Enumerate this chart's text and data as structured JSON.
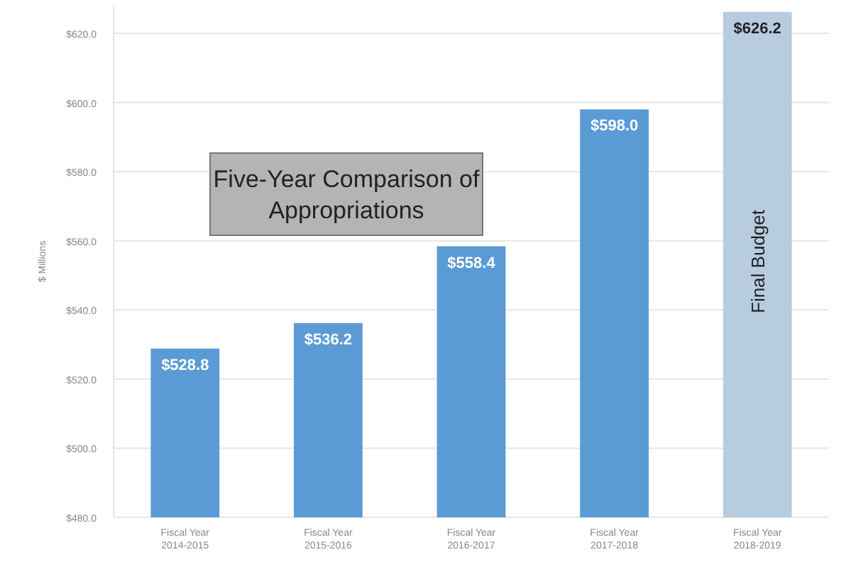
{
  "chart_data": {
    "type": "bar",
    "title": "Five-Year Comparison of Appropriations",
    "ylabel": "$ Millions",
    "categories": [
      "Fiscal Year 2014-2015",
      "Fiscal Year 2015-2016",
      "Fiscal Year 2016-2017",
      "Fiscal Year 2017-2018",
      "Fiscal Year 2018-2019"
    ],
    "values": [
      528.8,
      536.2,
      558.4,
      598.0,
      626.2
    ],
    "colors": [
      "#5b9bd5",
      "#5b9bd5",
      "#5b9bd5",
      "#5b9bd5",
      "#b8cce0"
    ],
    "value_labels": [
      "$528.8",
      "$536.2",
      "$558.4",
      "$598.0",
      "$626.2"
    ],
    "annotations": [
      "Final Budget"
    ],
    "ylim": [
      480,
      628
    ],
    "yticks": [
      {
        "value": 480,
        "label": "$480.0"
      },
      {
        "value": 500,
        "label": "$500.0"
      },
      {
        "value": 520,
        "label": "$520.0"
      },
      {
        "value": 540,
        "label": "$540.0"
      },
      {
        "value": 560,
        "label": "$560.0"
      },
      {
        "value": 580,
        "label": "$580.0"
      },
      {
        "value": 600,
        "label": "$600.0"
      },
      {
        "value": 620,
        "label": "$620.0"
      }
    ],
    "grid": "y"
  }
}
